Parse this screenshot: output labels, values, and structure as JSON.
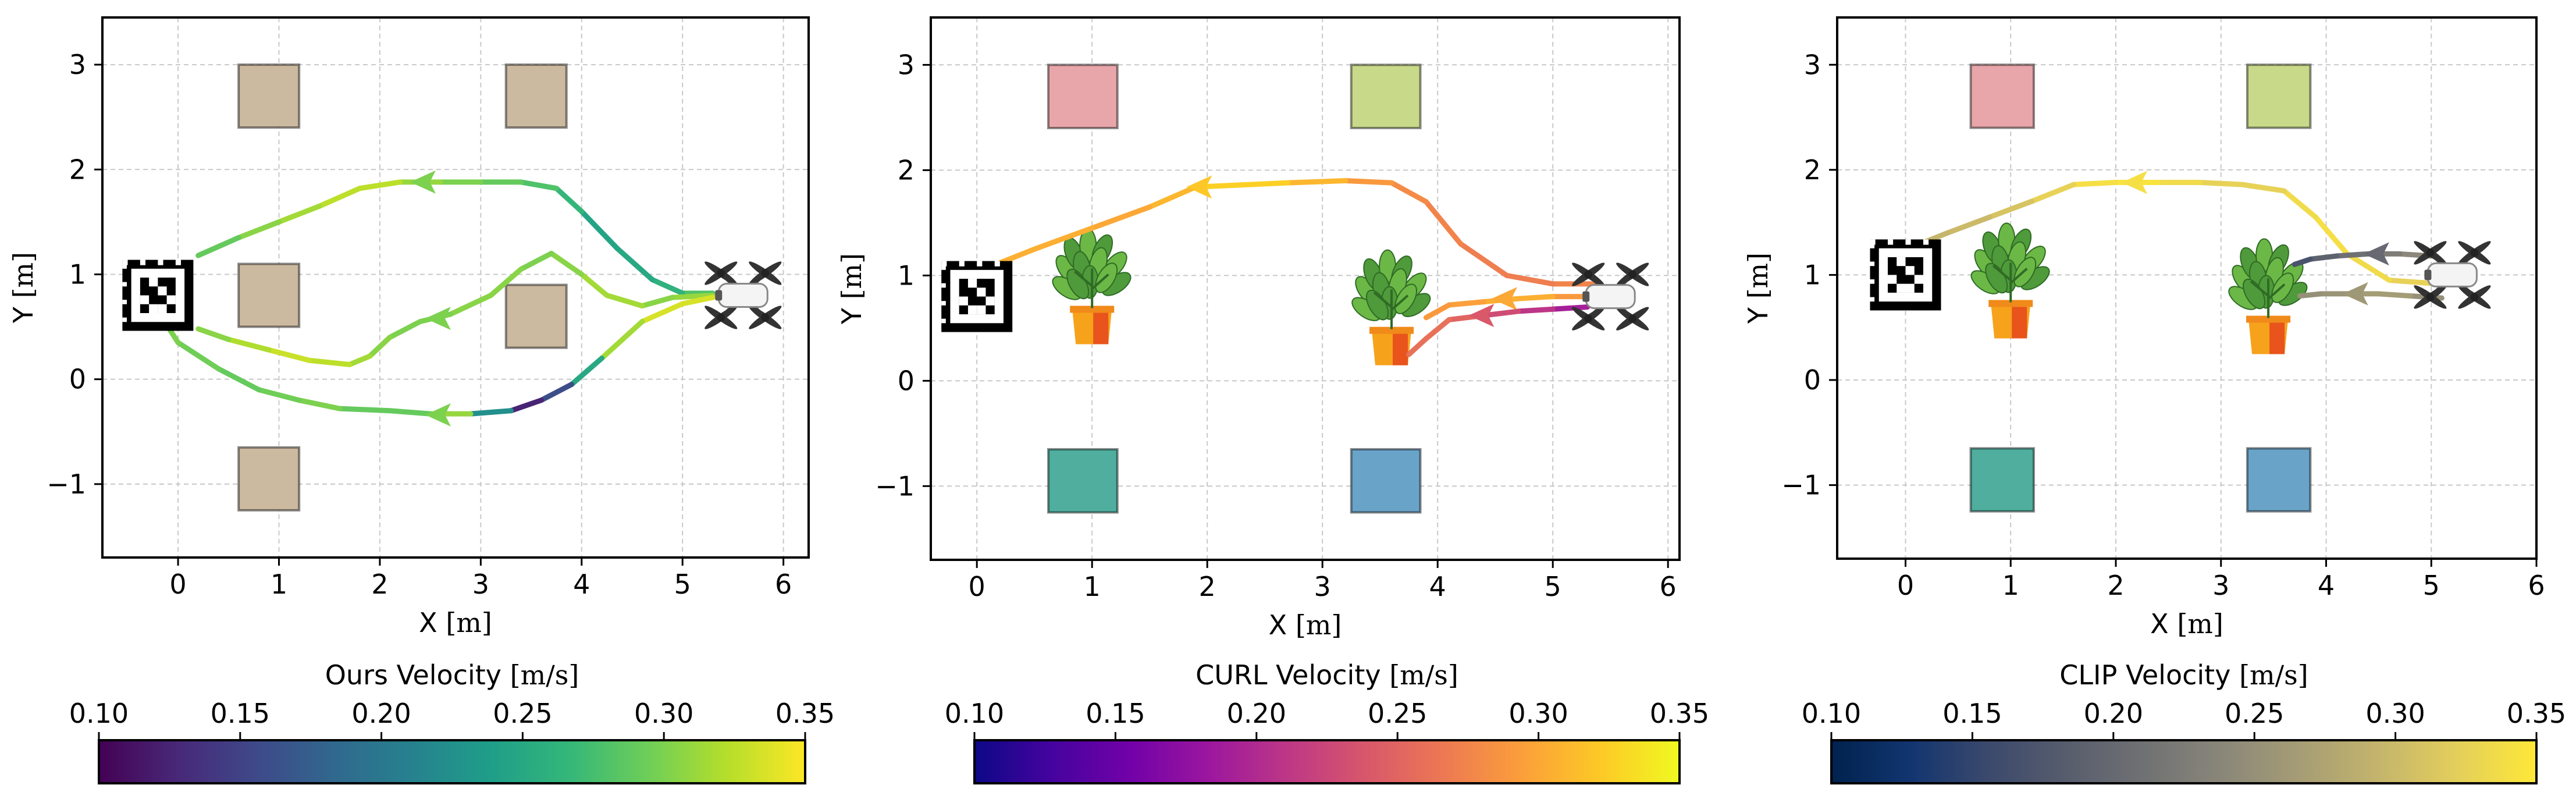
{
  "chart_data": [
    {
      "type": "line",
      "xlabel": "X",
      "xunit": "[m]",
      "ylabel": "Y",
      "yunit": "[m]",
      "xlim": [
        -0.75,
        6.25
      ],
      "ylim": [
        -1.7,
        3.45
      ],
      "xticks": [
        0,
        1,
        2,
        3,
        4,
        5,
        6
      ],
      "yticks": [
        -1,
        0,
        1,
        2,
        3
      ],
      "xtick_labels": [
        "0",
        "1",
        "2",
        "3",
        "4",
        "5",
        "6"
      ],
      "ytick_labels": [
        "−1",
        "0",
        "1",
        "2",
        "3"
      ],
      "grid": true,
      "drone": {
        "x": 5.6,
        "y": 0.8
      },
      "marker": {
        "x": -0.2,
        "y": 0.8
      },
      "obstacles": [
        {
          "x": 0.6,
          "y": 2.4,
          "w": 0.6,
          "h": 0.6,
          "color": "#cbb9a0"
        },
        {
          "x": 3.25,
          "y": 2.4,
          "w": 0.6,
          "h": 0.6,
          "color": "#cbb9a0"
        },
        {
          "x": 0.6,
          "y": 0.5,
          "w": 0.6,
          "h": 0.6,
          "color": "#cbb9a0"
        },
        {
          "x": 3.25,
          "y": 0.3,
          "w": 0.6,
          "h": 0.6,
          "color": "#cbb9a0"
        },
        {
          "x": 0.6,
          "y": -1.25,
          "w": 0.6,
          "h": 0.6,
          "color": "#cbb9a0"
        }
      ],
      "plants": [],
      "trajectories": [
        {
          "points": [
            [
              5.3,
              0.82
            ],
            [
              5.0,
              0.82
            ],
            [
              4.7,
              0.95
            ],
            [
              4.35,
              1.25
            ],
            [
              4.0,
              1.6
            ],
            [
              3.75,
              1.82
            ],
            [
              3.4,
              1.88
            ],
            [
              3.0,
              1.88
            ],
            [
              2.6,
              1.88
            ],
            [
              2.2,
              1.88
            ],
            [
              1.8,
              1.82
            ],
            [
              1.4,
              1.65
            ],
            [
              1.0,
              1.5
            ],
            [
              0.6,
              1.35
            ],
            [
              0.2,
              1.18
            ]
          ],
          "speeds": [
            0.3,
            0.26,
            0.26,
            0.24,
            0.25,
            0.28,
            0.28,
            0.3,
            0.3,
            0.32,
            0.33,
            0.32,
            0.31,
            0.3,
            0.28
          ],
          "arrow": {
            "x": 2.45,
            "y": 1.88
          }
        },
        {
          "points": [
            [
              5.3,
              0.8
            ],
            [
              4.9,
              0.78
            ],
            [
              4.6,
              0.7
            ],
            [
              4.25,
              0.8
            ],
            [
              4.0,
              1.0
            ],
            [
              3.7,
              1.2
            ],
            [
              3.4,
              1.05
            ],
            [
              3.1,
              0.8
            ],
            [
              2.7,
              0.62
            ],
            [
              2.4,
              0.55
            ],
            [
              2.1,
              0.4
            ],
            [
              1.9,
              0.22
            ],
            [
              1.7,
              0.14
            ],
            [
              1.3,
              0.18
            ],
            [
              0.9,
              0.28
            ],
            [
              0.5,
              0.38
            ],
            [
              0.2,
              0.48
            ]
          ],
          "speeds": [
            0.32,
            0.3,
            0.31,
            0.32,
            0.31,
            0.3,
            0.3,
            0.31,
            0.3,
            0.3,
            0.3,
            0.31,
            0.32,
            0.33,
            0.33,
            0.31,
            0.3
          ],
          "arrow": {
            "x": 2.6,
            "y": 0.58
          }
        },
        {
          "points": [
            [
              5.3,
              0.78
            ],
            [
              5.0,
              0.72
            ],
            [
              4.6,
              0.55
            ],
            [
              4.2,
              0.2
            ],
            [
              3.9,
              -0.05
            ],
            [
              3.6,
              -0.2
            ],
            [
              3.3,
              -0.3
            ],
            [
              2.9,
              -0.33
            ],
            [
              2.5,
              -0.33
            ],
            [
              2.1,
              -0.3
            ],
            [
              1.6,
              -0.28
            ],
            [
              1.2,
              -0.2
            ],
            [
              0.8,
              -0.1
            ],
            [
              0.4,
              0.1
            ],
            [
              0.0,
              0.35
            ],
            [
              -0.1,
              0.5
            ]
          ],
          "speeds": [
            0.33,
            0.34,
            0.33,
            0.3,
            0.2,
            0.12,
            0.13,
            0.32,
            0.3,
            0.28,
            0.3,
            0.3,
            0.29,
            0.29,
            0.3,
            0.3
          ],
          "arrow": {
            "x": 2.6,
            "y": -0.34
          }
        }
      ],
      "colorbar": {
        "label": "Ours Velocity",
        "unit": "[m/s]",
        "colormap": "viridis",
        "range": [
          0.1,
          0.35
        ],
        "ticks": [
          0.1,
          0.15,
          0.2,
          0.25,
          0.3,
          0.35
        ],
        "tick_labels": [
          "0.10",
          "0.15",
          "0.20",
          "0.25",
          "0.30",
          "0.35"
        ]
      }
    },
    {
      "type": "line",
      "xlabel": "X",
      "xunit": "[m]",
      "ylabel": "Y",
      "yunit": "[m]",
      "xlim": [
        -0.4,
        6.1
      ],
      "ylim": [
        -1.7,
        3.45
      ],
      "xticks": [
        0,
        1,
        2,
        3,
        4,
        5,
        6
      ],
      "yticks": [
        -1,
        0,
        1,
        2,
        3
      ],
      "xtick_labels": [
        "0",
        "1",
        "2",
        "3",
        "4",
        "5",
        "6"
      ],
      "ytick_labels": [
        "−1",
        "0",
        "1",
        "2",
        "3"
      ],
      "grid": true,
      "drone": {
        "x": 5.5,
        "y": 0.8
      },
      "marker": {
        "x": 0.0,
        "y": 0.8
      },
      "obstacles": [
        {
          "x": 0.62,
          "y": 2.4,
          "w": 0.6,
          "h": 0.6,
          "color": "#e8a6aa"
        },
        {
          "x": 3.25,
          "y": 2.4,
          "w": 0.6,
          "h": 0.6,
          "color": "#c8d98a"
        },
        {
          "x": 0.62,
          "y": -1.25,
          "w": 0.6,
          "h": 0.6,
          "color": "#4fae9e"
        },
        {
          "x": 3.25,
          "y": -1.25,
          "w": 0.6,
          "h": 0.6,
          "color": "#6aa3c8"
        }
      ],
      "plants": [
        {
          "x": 1.0,
          "y": 0.9
        },
        {
          "x": 3.6,
          "y": 0.7
        }
      ],
      "trajectories": [
        {
          "points": [
            [
              5.4,
              0.92
            ],
            [
              5.0,
              0.92
            ],
            [
              4.6,
              1.0
            ],
            [
              4.2,
              1.3
            ],
            [
              3.9,
              1.7
            ],
            [
              3.6,
              1.88
            ],
            [
              3.2,
              1.9
            ],
            [
              2.7,
              1.88
            ],
            [
              2.3,
              1.86
            ],
            [
              1.9,
              1.84
            ],
            [
              1.5,
              1.65
            ],
            [
              1.0,
              1.45
            ],
            [
              0.5,
              1.25
            ],
            [
              0.2,
              1.12
            ]
          ],
          "speeds": [
            0.28,
            0.27,
            0.27,
            0.27,
            0.28,
            0.28,
            0.3,
            0.32,
            0.33,
            0.32,
            0.3,
            0.3,
            0.31,
            0.3
          ],
          "arrow": {
            "x": 1.95,
            "y": 1.84
          }
        },
        {
          "points": [
            [
              5.3,
              0.8
            ],
            [
              5.0,
              0.8
            ],
            [
              4.7,
              0.78
            ],
            [
              4.4,
              0.75
            ],
            [
              4.1,
              0.72
            ],
            [
              3.9,
              0.6
            ]
          ],
          "speeds": [
            0.28,
            0.3,
            0.31,
            0.3,
            0.29,
            0.29
          ],
          "arrow": {
            "x": 4.6,
            "y": 0.78
          }
        },
        {
          "points": [
            [
              5.3,
              0.7
            ],
            [
              5.0,
              0.68
            ],
            [
              4.7,
              0.66
            ],
            [
              4.4,
              0.62
            ],
            [
              4.1,
              0.58
            ],
            [
              3.9,
              0.4
            ],
            [
              3.75,
              0.25
            ]
          ],
          "speeds": [
            0.18,
            0.2,
            0.22,
            0.24,
            0.26,
            0.26,
            0.26
          ],
          "arrow": {
            "x": 4.4,
            "y": 0.62
          }
        }
      ],
      "colorbar": {
        "label": "CURL Velocity",
        "unit": "[m/s]",
        "colormap": "plasma",
        "range": [
          0.1,
          0.35
        ],
        "ticks": [
          0.1,
          0.15,
          0.2,
          0.25,
          0.3,
          0.35
        ],
        "tick_labels": [
          "0.10",
          "0.15",
          "0.20",
          "0.25",
          "0.30",
          "0.35"
        ]
      }
    },
    {
      "type": "line",
      "xlabel": "X",
      "xunit": "[m]",
      "ylabel": "Y",
      "yunit": "[m]",
      "xlim": [
        -0.65,
        6.0
      ],
      "ylim": [
        -1.7,
        3.45
      ],
      "xticks": [
        0,
        1,
        2,
        3,
        4,
        5,
        6
      ],
      "yticks": [
        -1,
        0,
        1,
        2,
        3
      ],
      "xtick_labels": [
        "0",
        "1",
        "2",
        "3",
        "4",
        "5",
        "6"
      ],
      "ytick_labels": [
        "−1",
        "0",
        "1",
        "2",
        "3"
      ],
      "grid": true,
      "drone": {
        "x": 5.2,
        "y": 1.0
      },
      "marker": {
        "x": 0.0,
        "y": 1.0
      },
      "obstacles": [
        {
          "x": 0.62,
          "y": 2.4,
          "w": 0.6,
          "h": 0.6,
          "color": "#e8a6aa"
        },
        {
          "x": 3.25,
          "y": 2.4,
          "w": 0.6,
          "h": 0.6,
          "color": "#c8d98a"
        },
        {
          "x": 0.62,
          "y": -1.25,
          "w": 0.6,
          "h": 0.6,
          "color": "#4fae9e"
        },
        {
          "x": 3.25,
          "y": -1.25,
          "w": 0.6,
          "h": 0.6,
          "color": "#6aa3c8"
        }
      ],
      "plants": [
        {
          "x": 1.0,
          "y": 0.95
        },
        {
          "x": 3.45,
          "y": 0.8
        }
      ],
      "trajectories": [
        {
          "points": [
            [
              5.0,
              0.92
            ],
            [
              4.6,
              0.95
            ],
            [
              4.2,
              1.2
            ],
            [
              3.9,
              1.55
            ],
            [
              3.6,
              1.8
            ],
            [
              3.2,
              1.86
            ],
            [
              2.8,
              1.88
            ],
            [
              2.4,
              1.88
            ],
            [
              2.0,
              1.88
            ],
            [
              1.6,
              1.86
            ],
            [
              1.2,
              1.7
            ],
            [
              0.8,
              1.55
            ],
            [
              0.4,
              1.4
            ],
            [
              0.1,
              1.28
            ]
          ],
          "speeds": [
            0.32,
            0.33,
            0.34,
            0.34,
            0.33,
            0.32,
            0.33,
            0.34,
            0.35,
            0.33,
            0.32,
            0.3,
            0.3,
            0.29
          ],
          "arrow": {
            "x": 2.2,
            "y": 1.88
          }
        },
        {
          "points": [
            [
              5.0,
              1.18
            ],
            [
              4.7,
              1.2
            ],
            [
              4.4,
              1.2
            ],
            [
              4.1,
              1.18
            ],
            [
              3.85,
              1.15
            ],
            [
              3.7,
              1.1
            ]
          ],
          "speeds": [
            0.25,
            0.23,
            0.22,
            0.2,
            0.18,
            0.16
          ],
          "arrow": {
            "x": 4.5,
            "y": 1.2
          }
        },
        {
          "points": [
            [
              5.1,
              0.78
            ],
            [
              4.8,
              0.8
            ],
            [
              4.5,
              0.82
            ],
            [
              4.2,
              0.82
            ],
            [
              3.95,
              0.82
            ],
            [
              3.75,
              0.8
            ]
          ],
          "speeds": [
            0.24,
            0.26,
            0.27,
            0.26,
            0.25,
            0.25
          ],
          "arrow": {
            "x": 4.3,
            "y": 0.82
          }
        }
      ],
      "colorbar": {
        "label": "CLIP Velocity",
        "unit": "[m/s]",
        "colormap": "cividis",
        "range": [
          0.1,
          0.35
        ],
        "ticks": [
          0.1,
          0.15,
          0.2,
          0.25,
          0.3,
          0.35
        ],
        "tick_labels": [
          "0.10",
          "0.15",
          "0.20",
          "0.25",
          "0.30",
          "0.35"
        ]
      }
    }
  ]
}
